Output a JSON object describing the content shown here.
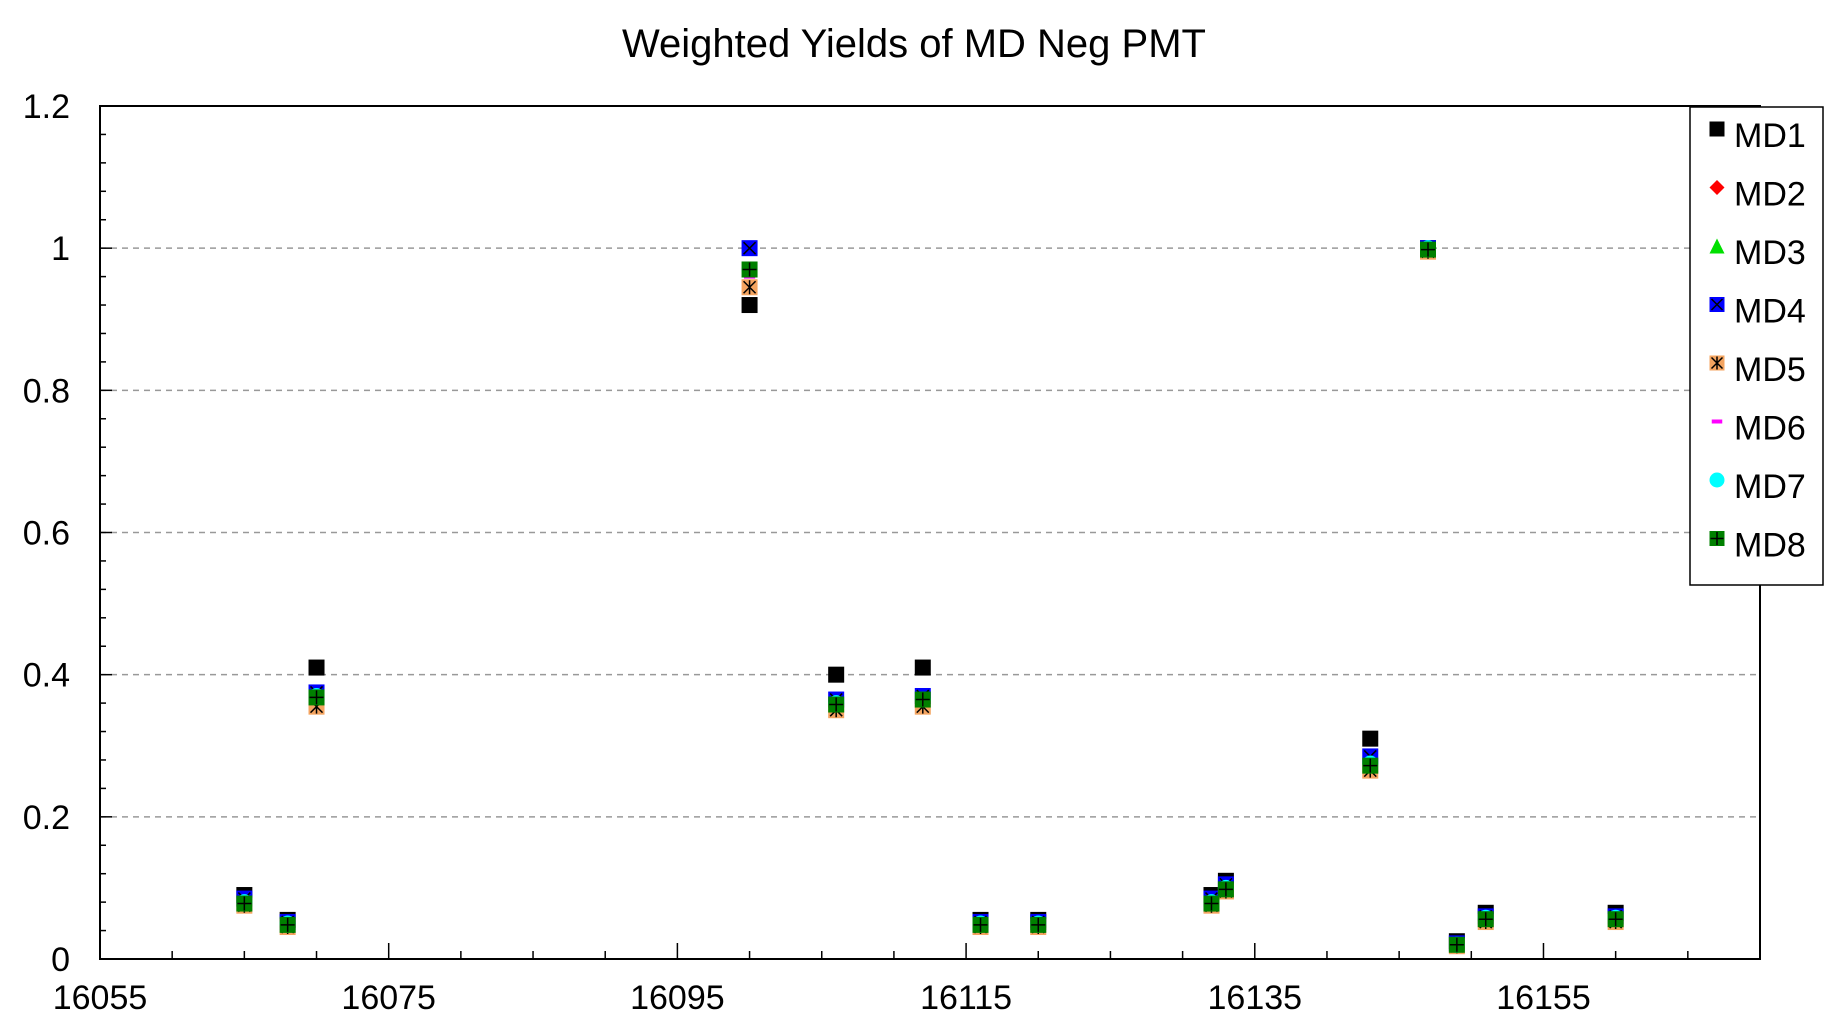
{
  "chart_data": {
    "type": "scatter",
    "title": "Weighted Yields of MD Neg PMT",
    "xlabel": "",
    "ylabel": "",
    "xlim": [
      16055,
      16170
    ],
    "ylim": [
      0,
      1.2
    ],
    "x_ticks": [
      16055,
      16075,
      16095,
      16115,
      16135,
      16155
    ],
    "y_ticks": [
      0,
      0.2,
      0.4,
      0.6,
      0.8,
      1,
      1.2
    ],
    "y_tick_labels": [
      "0",
      "0.2",
      "0.4",
      "0.6",
      "0.8",
      "1",
      "1.2"
    ],
    "grid": "horizontal dashed",
    "legend_position": "top-right",
    "x": [
      16065,
      16068,
      16070,
      16100,
      16106,
      16112,
      16116,
      16120,
      16132,
      16133,
      16143,
      16147,
      16149,
      16151,
      16160
    ],
    "series": [
      {
        "name": "MD1",
        "marker": "square",
        "color": "#000000",
        "values": [
          0.09,
          0.055,
          0.41,
          0.92,
          0.4,
          0.41,
          0.055,
          0.055,
          0.09,
          0.11,
          0.31,
          1.0,
          0.025,
          0.065,
          0.065
        ]
      },
      {
        "name": "MD2",
        "marker": "diamond",
        "color": "#ff0000",
        "values": [
          0.08,
          0.05,
          0.37,
          0.97,
          0.36,
          0.365,
          0.05,
          0.05,
          0.08,
          0.1,
          0.275,
          1.0,
          0.02,
          0.058,
          0.058
        ]
      },
      {
        "name": "MD3",
        "marker": "triangle",
        "color": "#00e000",
        "values": [
          0.08,
          0.05,
          0.37,
          0.97,
          0.36,
          0.365,
          0.05,
          0.05,
          0.08,
          0.1,
          0.275,
          1.0,
          0.02,
          0.058,
          0.058
        ]
      },
      {
        "name": "MD4",
        "marker": "square-x",
        "color": "#0000ff",
        "values": [
          0.085,
          0.052,
          0.375,
          1.0,
          0.365,
          0.37,
          0.052,
          0.052,
          0.085,
          0.105,
          0.285,
          1.0,
          0.022,
          0.06,
          0.06
        ]
      },
      {
        "name": "MD5",
        "marker": "square-star",
        "color": "#f4a460",
        "values": [
          0.075,
          0.045,
          0.355,
          0.945,
          0.35,
          0.355,
          0.045,
          0.045,
          0.075,
          0.095,
          0.265,
          0.995,
          0.018,
          0.052,
          0.052
        ]
      },
      {
        "name": "MD6",
        "marker": "dash",
        "color": "#ff00ff",
        "values": [
          0.08,
          0.05,
          0.365,
          0.96,
          0.358,
          0.362,
          0.05,
          0.05,
          0.08,
          0.1,
          0.272,
          1.0,
          0.02,
          0.057,
          0.057
        ]
      },
      {
        "name": "MD7",
        "marker": "circle",
        "color": "#00ffff",
        "values": [
          0.08,
          0.05,
          0.37,
          0.97,
          0.36,
          0.365,
          0.05,
          0.05,
          0.08,
          0.1,
          0.275,
          1.0,
          0.02,
          0.058,
          0.058
        ]
      },
      {
        "name": "MD8",
        "marker": "square-plus",
        "color": "#008000",
        "values": [
          0.078,
          0.048,
          0.368,
          0.97,
          0.358,
          0.365,
          0.048,
          0.048,
          0.078,
          0.098,
          0.272,
          0.998,
          0.02,
          0.056,
          0.056
        ]
      }
    ]
  }
}
